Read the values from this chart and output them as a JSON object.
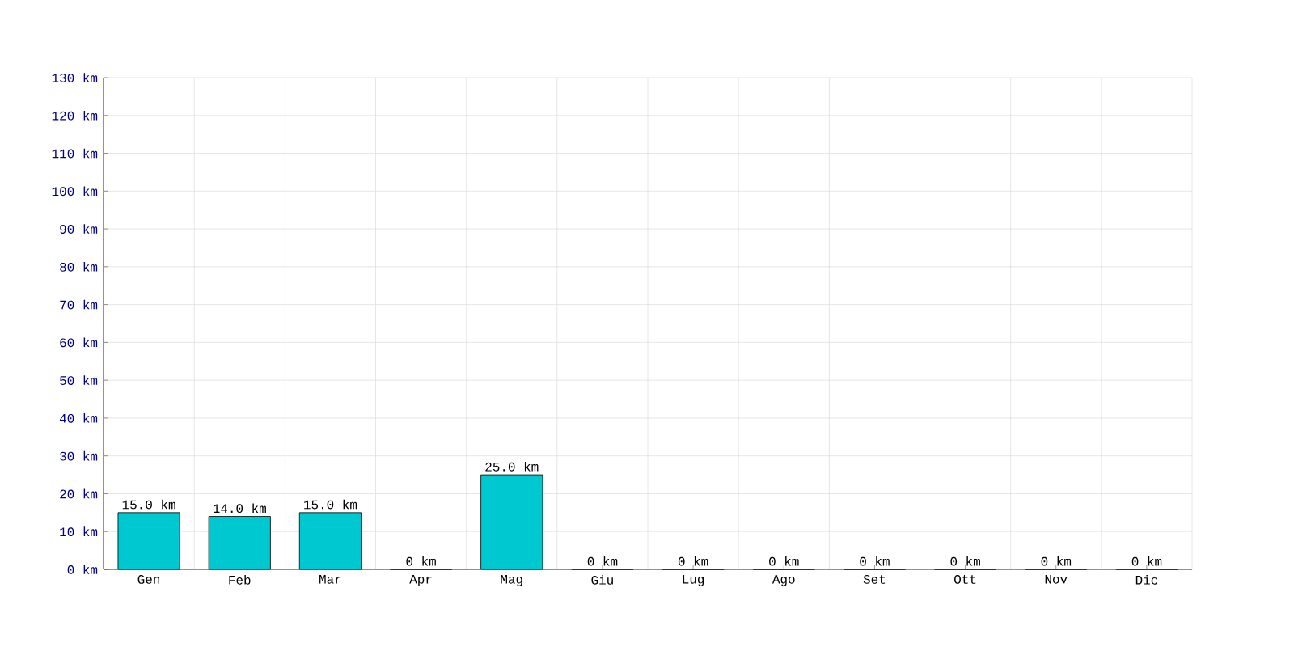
{
  "chart_data": {
    "type": "bar",
    "categories": [
      "Gen",
      "Feb",
      "Mar",
      "Apr",
      "Mag",
      "Giu",
      "Lug",
      "Ago",
      "Set",
      "Ott",
      "Nov",
      "Dic"
    ],
    "values": [
      15,
      14,
      15,
      0,
      25,
      0,
      0,
      0,
      0,
      0,
      0,
      0
    ],
    "value_labels": [
      "15.0 km",
      "14.0 km",
      "15.0 km",
      "0 km",
      "25.0 km",
      "0 km",
      "0 km",
      "0 km",
      "0 km",
      "0 km",
      "0 km",
      "0 km"
    ],
    "color": "#00c8d0",
    "ylim": [
      0,
      130
    ],
    "yticks": [
      {
        "value": 0,
        "label": "0 km"
      },
      {
        "value": 10,
        "label": "10 km"
      },
      {
        "value": 20,
        "label": "20 km"
      },
      {
        "value": 30,
        "label": "30 km"
      },
      {
        "value": 40,
        "label": "40 km"
      },
      {
        "value": 50,
        "label": "50 km"
      },
      {
        "value": 60,
        "label": "60 km"
      },
      {
        "value": 70,
        "label": "70 km"
      },
      {
        "value": 80,
        "label": "80 km"
      },
      {
        "value": 90,
        "label": "90 km"
      },
      {
        "value": 100,
        "label": "100 km"
      },
      {
        "value": 110,
        "label": "110 km"
      },
      {
        "value": 120,
        "label": "120 km"
      },
      {
        "value": 130,
        "label": "130 km"
      }
    ],
    "grid": true
  }
}
